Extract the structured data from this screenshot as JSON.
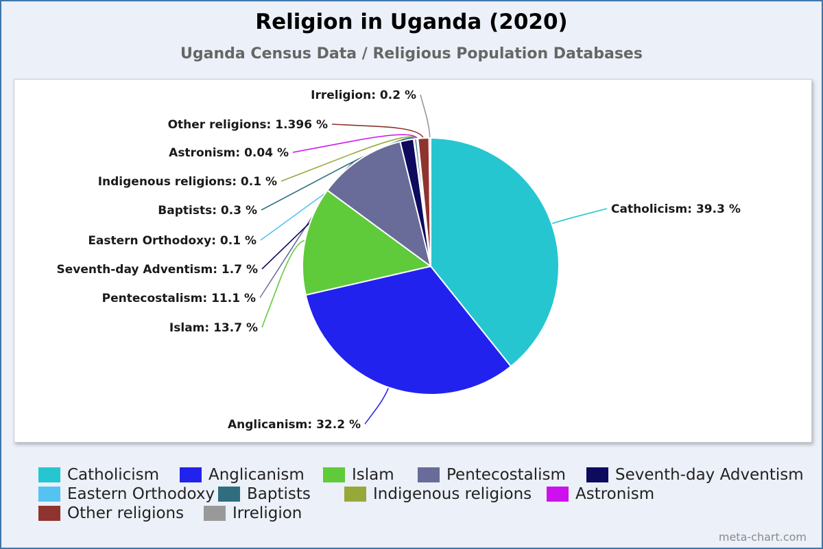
{
  "chart_data": {
    "type": "pie",
    "title": "Religion in Uganda (2020)",
    "subtitle": "Uganda Census Data / Religious Population Databases",
    "legend_position": "bottom",
    "slices": [
      {
        "name": "Catholicism",
        "value": 39.3,
        "label": "Catholicism: 39.3 %",
        "color": "#26c6d0"
      },
      {
        "name": "Anglicanism",
        "value": 32.2,
        "label": "Anglicanism: 32.2 %",
        "color": "#2222ee"
      },
      {
        "name": "Islam",
        "value": 13.7,
        "label": "Islam: 13.7 %",
        "color": "#5fcb3b"
      },
      {
        "name": "Pentecostalism",
        "value": 11.1,
        "label": "Pentecostalism: 11.1 %",
        "color": "#696c98"
      },
      {
        "name": "Seventh-day Adventism",
        "value": 1.7,
        "label": "Seventh-day Adventism: 1.7 %",
        "color": "#0e0a5e"
      },
      {
        "name": "Eastern Orthodoxy",
        "value": 0.1,
        "label": "Eastern Orthodoxy: 0.1 %",
        "color": "#55c3f2"
      },
      {
        "name": "Baptists",
        "value": 0.3,
        "label": "Baptists: 0.3 %",
        "color": "#2f6e7f"
      },
      {
        "name": "Indigenous religions",
        "value": 0.1,
        "label": "Indigenous religions: 0.1 %",
        "color": "#97a83a"
      },
      {
        "name": "Astronism",
        "value": 0.04,
        "label": "Astronism: 0.04 %",
        "color": "#cc11ee"
      },
      {
        "name": "Other religions",
        "value": 1.396,
        "label": "Other religions: 1.396 %",
        "color": "#8f332f"
      },
      {
        "name": "Irreligion",
        "value": 0.2,
        "label": "Irreligion: 0.2 %",
        "color": "#999999"
      }
    ]
  },
  "credit": "meta-chart.com"
}
